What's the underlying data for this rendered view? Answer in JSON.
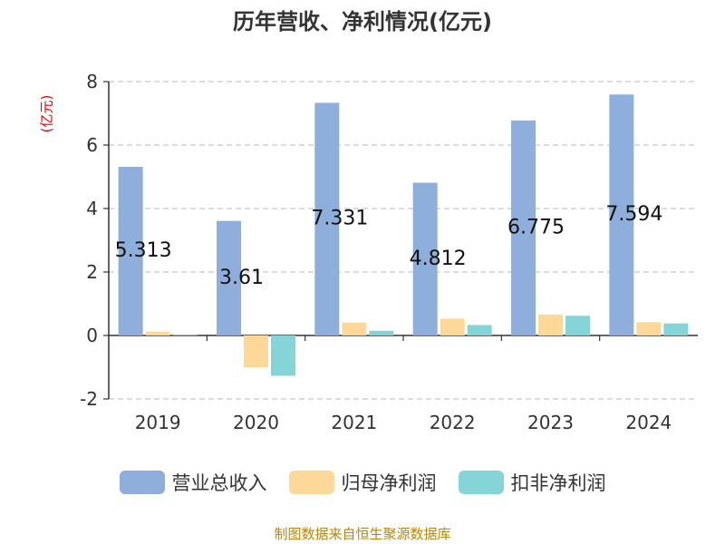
{
  "chart_data": {
    "type": "bar",
    "title": "历年营收、净利情况(亿元)",
    "unit_label": "(亿元)",
    "categories": [
      "2019",
      "2020",
      "2021",
      "2022",
      "2023",
      "2024"
    ],
    "series": [
      {
        "name": "营业总收入",
        "color": "#8eaedb",
        "values": [
          5.313,
          3.61,
          7.331,
          4.812,
          6.775,
          7.594
        ],
        "labels": [
          "5.313",
          "3.61",
          "7.331",
          "4.812",
          "6.775",
          "7.594"
        ]
      },
      {
        "name": "归母净利润",
        "color": "#fdd898",
        "values": [
          0.12,
          -1.0,
          0.4,
          0.53,
          0.66,
          0.42
        ]
      },
      {
        "name": "扣非净利润",
        "color": "#85d4d8",
        "values": [
          0.02,
          -1.27,
          0.15,
          0.33,
          0.62,
          0.38
        ]
      }
    ],
    "ylim": [
      -2,
      8
    ],
    "yticks": [
      -2,
      0,
      2,
      4,
      6,
      8
    ],
    "grid": true,
    "legend_position": "bottom"
  },
  "footer": {
    "source": "制图数据来自恒生聚源数据库"
  }
}
